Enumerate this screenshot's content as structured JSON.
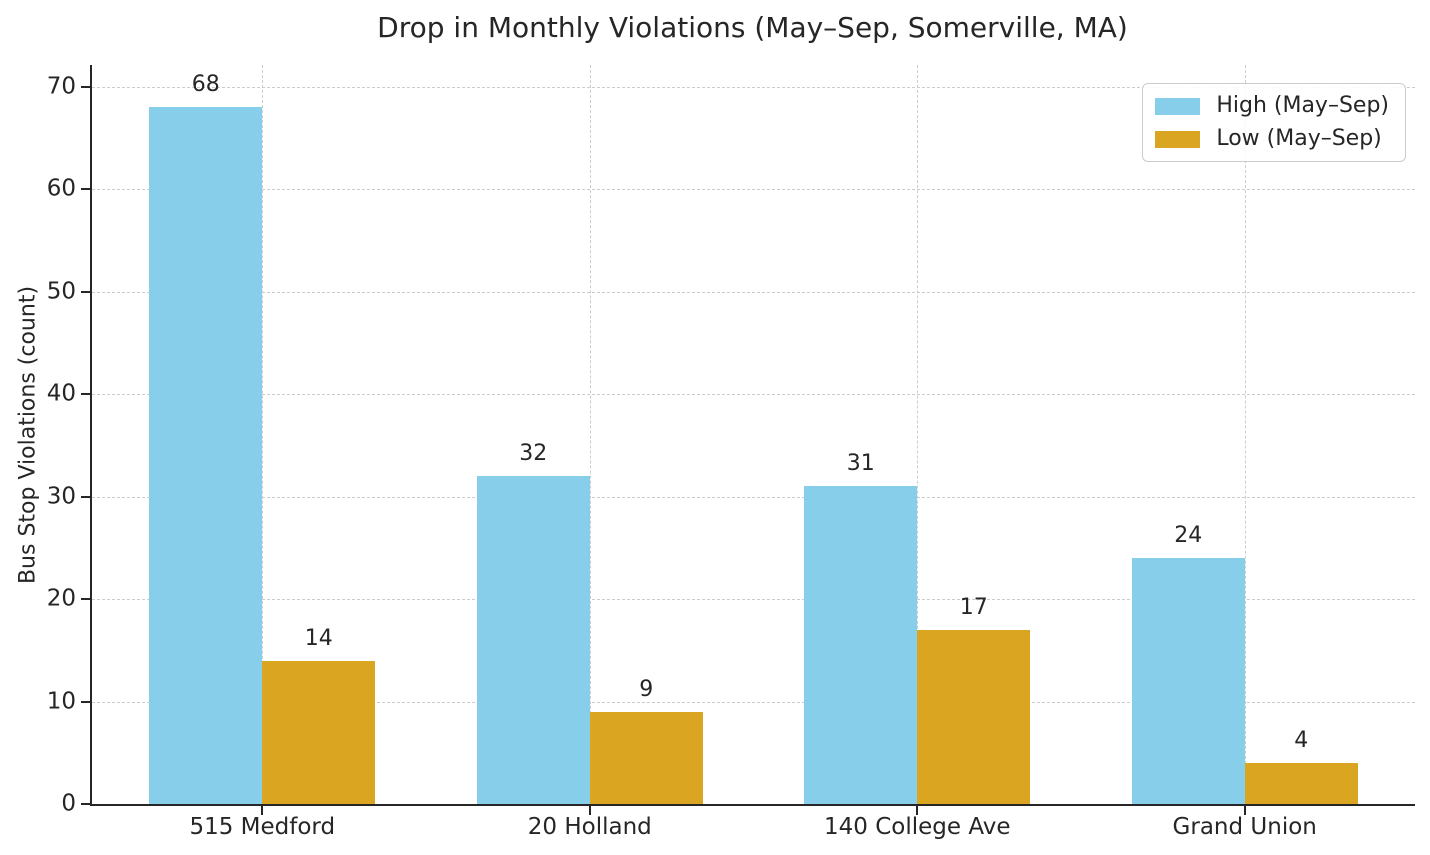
{
  "chart_data": {
    "type": "bar",
    "title": "Drop in Monthly Violations (May–Sep, Somerville, MA)",
    "xlabel": "",
    "ylabel": "Bus Stop Violations (count)",
    "categories": [
      "515 Medford",
      "20 Holland",
      "140 College Ave",
      "Grand Union"
    ],
    "series": [
      {
        "name": "High (May–Sep)",
        "color": "#87CEEB",
        "values": [
          68,
          32,
          31,
          24
        ]
      },
      {
        "name": "Low (May–Sep)",
        "color": "#DAA520",
        "values": [
          14,
          9,
          17,
          4
        ]
      }
    ],
    "value_labels_shown": true,
    "ylim": [
      0,
      72.1
    ],
    "yticks": [
      0,
      10,
      20,
      30,
      40,
      50,
      60,
      70
    ],
    "grid": true,
    "grid_style": "dashed",
    "legend_position": "upper right",
    "colors": {
      "high_series": "#87CEEB",
      "low_series": "#DAA520",
      "text": "#262626",
      "grid": "#cccccc",
      "axis": "#262626",
      "background": "#ffffff"
    }
  }
}
